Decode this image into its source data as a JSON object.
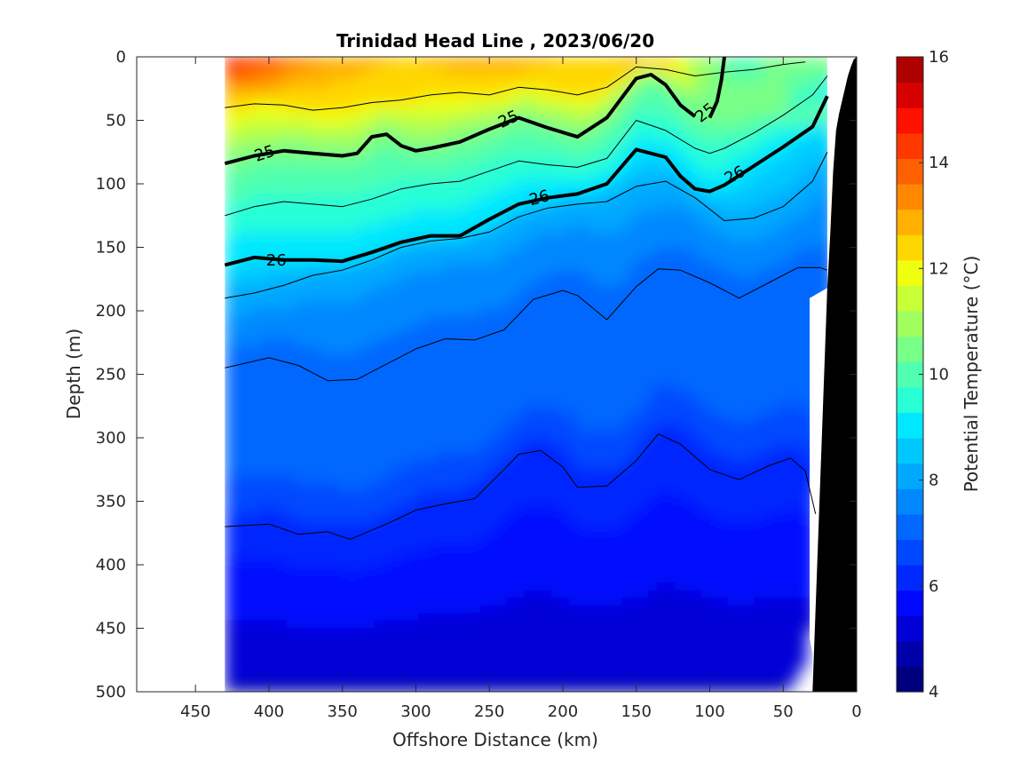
{
  "chart_data": {
    "type": "heatmap",
    "title": "Trinidad Head Line , 2023/06/20",
    "xlabel": "Offshore Distance (km)",
    "ylabel": "Depth (m)",
    "colorbar_label": "Potential Temperature (°C)",
    "xlim": [
      490,
      0
    ],
    "ylim": [
      0,
      500
    ],
    "x_reversed": true,
    "y_reversed": true,
    "xticks": [
      450,
      400,
      350,
      300,
      250,
      200,
      150,
      100,
      50,
      0
    ],
    "yticks": [
      0,
      50,
      100,
      150,
      200,
      250,
      300,
      350,
      400,
      450,
      500
    ],
    "colorbar_range": [
      4,
      16
    ],
    "colorbar_ticks": [
      4,
      6,
      8,
      10,
      12,
      14,
      16
    ],
    "colormap_levels": [
      "#00007f",
      "#0000ab",
      "#0000d7",
      "#0008ff",
      "#0028ff",
      "#0048ff",
      "#0068ff",
      "#0088ff",
      "#00a8ff",
      "#00c8ff",
      "#00e8ff",
      "#28ffd7",
      "#50ffaf",
      "#78ff87",
      "#a0ff5f",
      "#c8ff37",
      "#f0ff0f",
      "#ffd700",
      "#ffb000",
      "#ff8800",
      "#ff6000",
      "#ff3800",
      "#ff1000",
      "#d70000",
      "#af0000"
    ],
    "station_x": [
      430,
      410,
      390,
      370,
      350,
      330,
      310,
      290,
      270,
      250,
      230,
      210,
      190,
      170,
      150,
      130,
      110,
      90,
      70,
      50,
      35,
      20
    ],
    "bottom_depth": [
      500,
      500,
      500,
      500,
      500,
      500,
      500,
      500,
      500,
      500,
      500,
      500,
      500,
      500,
      500,
      500,
      500,
      500,
      500,
      500,
      470,
      182
    ],
    "surface_temp": [
      14.8,
      14.5,
      13.6,
      13.2,
      13.0,
      12.8,
      12.6,
      12.8,
      12.9,
      13.0,
      12.9,
      12.7,
      12.4,
      12.5,
      13.0,
      12.5,
      11.0,
      10.2,
      10.2,
      10.4,
      10.6,
      10.6
    ],
    "isopycnals": [
      {
        "level": "25",
        "emphasis": true,
        "x": [
          430,
          410,
          390,
          370,
          350,
          340,
          330,
          320,
          310,
          300,
          290,
          270,
          250,
          230,
          210,
          190,
          170,
          150,
          140,
          130,
          120,
          110
        ],
        "y": [
          84,
          78,
          74,
          76,
          78,
          76,
          63,
          61,
          70,
          74,
          72,
          67,
          57,
          48,
          56,
          63,
          48,
          17,
          14,
          22,
          38,
          47
        ]
      },
      {
        "level": "25",
        "emphasis": true,
        "x": [
          100,
          95,
          92,
          90
        ],
        "y": [
          48,
          35,
          18,
          0
        ]
      },
      {
        "level": "26",
        "emphasis": true,
        "x": [
          430,
          410,
          390,
          370,
          350,
          330,
          310,
          290,
          270,
          250,
          230,
          210,
          190,
          170,
          150,
          130,
          120,
          110,
          100,
          90,
          70,
          50,
          30,
          20
        ],
        "y": [
          164,
          158,
          160,
          160,
          161,
          154,
          146,
          141,
          141,
          128,
          116,
          111,
          108,
          100,
          73,
          79,
          94,
          104,
          106,
          101,
          86,
          71,
          55,
          31
        ]
      },
      {
        "level": "",
        "emphasis": false,
        "x": [
          430,
          410,
          390,
          370,
          350,
          330,
          310,
          290,
          270,
          250,
          230,
          210,
          190,
          170,
          150,
          130,
          110,
          90,
          70,
          50,
          30,
          20
        ],
        "y": [
          190,
          186,
          180,
          172,
          168,
          160,
          150,
          145,
          143,
          138,
          126,
          119,
          116,
          114,
          102,
          98,
          111,
          129,
          127,
          118,
          98,
          75
        ]
      },
      {
        "level": "",
        "emphasis": false,
        "x": [
          430,
          400,
          380,
          360,
          340,
          320,
          300,
          280,
          260,
          240,
          220,
          200,
          190,
          170,
          150,
          135,
          120,
          100,
          80,
          60,
          40,
          25,
          20
        ],
        "y": [
          245,
          237,
          243,
          255,
          254,
          242,
          230,
          222,
          223,
          215,
          191,
          184,
          188,
          207,
          181,
          167,
          168,
          178,
          190,
          178,
          166,
          166,
          168
        ]
      },
      {
        "level": "",
        "emphasis": false,
        "x": [
          430,
          400,
          380,
          360,
          345,
          320,
          300,
          280,
          260,
          240,
          230,
          215,
          200,
          190,
          170,
          150,
          135,
          120,
          100,
          80,
          60,
          45,
          35,
          28
        ],
        "y": [
          370,
          368,
          376,
          374,
          380,
          368,
          357,
          352,
          348,
          325,
          313,
          310,
          323,
          339,
          338,
          318,
          297,
          305,
          325,
          333,
          322,
          316,
          326,
          360
        ]
      },
      {
        "level": "",
        "emphasis": false,
        "x": [
          430,
          410,
          390,
          370,
          350,
          330,
          310,
          290,
          270,
          250,
          230,
          210,
          190,
          170,
          150,
          130,
          110,
          90,
          70,
          50,
          35
        ],
        "y": [
          40,
          37,
          38,
          42,
          40,
          36,
          34,
          30,
          28,
          30,
          24,
          26,
          30,
          24,
          8,
          10,
          15,
          12,
          10,
          6,
          4
        ]
      },
      {
        "level": "",
        "emphasis": false,
        "x": [
          430,
          410,
          390,
          370,
          350,
          330,
          310,
          290,
          270,
          250,
          230,
          210,
          190,
          170,
          150,
          130,
          110,
          100,
          90,
          70,
          50,
          30,
          20
        ],
        "y": [
          125,
          118,
          114,
          116,
          118,
          112,
          104,
          100,
          98,
          90,
          82,
          85,
          87,
          80,
          50,
          58,
          72,
          76,
          72,
          60,
          46,
          30,
          15
        ]
      }
    ],
    "contour_labels": [
      {
        "text": "25",
        "x": 403,
        "y": 76,
        "rotate": -18
      },
      {
        "text": "25",
        "x": 237,
        "y": 49,
        "rotate": -25
      },
      {
        "text": "25",
        "x": 103,
        "y": 44,
        "rotate": -38
      },
      {
        "text": "26",
        "x": 395,
        "y": 160,
        "rotate": 0
      },
      {
        "text": "26",
        "x": 216,
        "y": 111,
        "rotate": -15
      },
      {
        "text": "26",
        "x": 83,
        "y": 93,
        "rotate": -28
      }
    ],
    "seafloor": {
      "x": [
        30,
        20,
        18,
        16,
        14,
        12,
        10,
        8,
        6,
        4,
        2,
        0
      ],
      "y": [
        500,
        182,
        140,
        90,
        58,
        45,
        35,
        25,
        15,
        8,
        2,
        0
      ]
    },
    "grid": false,
    "legend": "none"
  }
}
